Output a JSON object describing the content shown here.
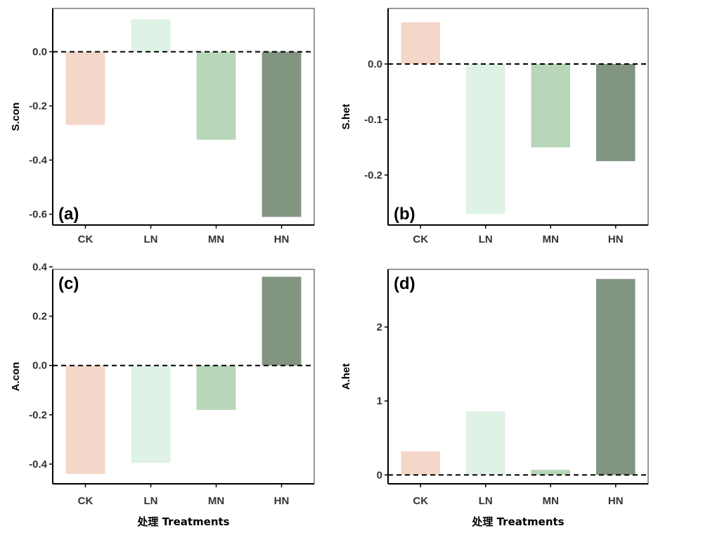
{
  "figure": {
    "x_title": "处理 Treatments",
    "colors": {
      "CK": "#f5d7ca",
      "LN": "#def2e6",
      "MN": "#b8d6b8",
      "HN": "#829580",
      "axis": "#000000",
      "tick_text": "#333333",
      "baseline": "#000000"
    }
  },
  "chart_data": [
    {
      "panel": "(a)",
      "type": "bar",
      "categories": [
        "CK",
        "LN",
        "MN",
        "HN"
      ],
      "values": [
        -0.27,
        0.12,
        -0.325,
        -0.61
      ],
      "ylabel": "S.con",
      "xlabel": "",
      "ylim": [
        -0.64,
        0.16
      ],
      "yticks": [
        -0.6,
        -0.4,
        -0.2,
        0.0
      ],
      "ytick_labels": [
        "-0.6",
        "-0.4",
        "-0.2",
        "0.0"
      ],
      "reference_line": 0,
      "label_position": "bottom-left",
      "grid": false
    },
    {
      "panel": "(b)",
      "type": "bar",
      "categories": [
        "CK",
        "LN",
        "MN",
        "HN"
      ],
      "values": [
        0.075,
        -0.27,
        -0.15,
        -0.175
      ],
      "ylabel": "S.het",
      "xlabel": "",
      "ylim": [
        -0.29,
        0.1
      ],
      "yticks": [
        -0.2,
        -0.1,
        0.0
      ],
      "ytick_labels": [
        "-0.2",
        "-0.1",
        "0.0"
      ],
      "reference_line": 0,
      "label_position": "bottom-left",
      "grid": false
    },
    {
      "panel": "(c)",
      "type": "bar",
      "categories": [
        "CK",
        "LN",
        "MN",
        "HN"
      ],
      "values": [
        -0.44,
        -0.395,
        -0.18,
        0.36
      ],
      "ylabel": "A.con",
      "xlabel": "处理 Treatments",
      "ylim": [
        -0.48,
        0.39
      ],
      "yticks": [
        -0.4,
        -0.2,
        0.0,
        0.2,
        0.4
      ],
      "ytick_labels": [
        "-0.4",
        "-0.2",
        "0.0",
        "0.2",
        "0.4"
      ],
      "reference_line": 0,
      "label_position": "top-left",
      "grid": false
    },
    {
      "panel": "(d)",
      "type": "bar",
      "categories": [
        "CK",
        "LN",
        "MN",
        "HN"
      ],
      "values": [
        0.32,
        0.86,
        0.07,
        2.65
      ],
      "ylabel": "A.het",
      "xlabel": "处理 Treatments",
      "ylim": [
        -0.12,
        2.78
      ],
      "yticks": [
        0,
        1,
        2
      ],
      "ytick_labels": [
        "0",
        "1",
        "2"
      ],
      "reference_line": 0,
      "label_position": "top-left",
      "grid": false
    }
  ]
}
